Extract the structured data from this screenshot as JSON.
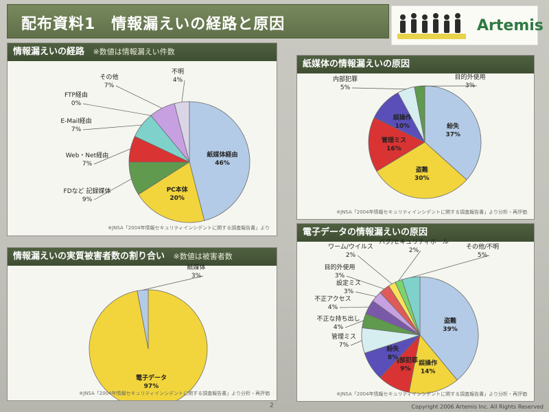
{
  "title": "配布資料1　情報漏えいの経路と原因",
  "logo": {
    "text": "Artemis"
  },
  "page_number": "2",
  "copyright": "Copyright 2006 Artemis Inc. All Rights Reserved",
  "colors": {
    "header": "#4f6040",
    "title_bar": "#6c7d55",
    "logo_green": "#2f7a43"
  },
  "chart_data": [
    {
      "type": "pie",
      "title": "情報漏えいの経路",
      "note": "※数値は情報漏えい件数",
      "source": "※JNSA「2004年情報セキュリティインシデントに関する調査報告書」より",
      "slices": [
        {
          "label": "紙媒体経由",
          "value": 46,
          "text": "46%",
          "color": "#b3cbe6"
        },
        {
          "label": "PC本体",
          "value": 20,
          "text": "20%",
          "color": "#f2d53c"
        },
        {
          "label": "FDなど 記録媒体",
          "value": 9,
          "text": "9%",
          "color": "#5f9a4e"
        },
        {
          "label": "Web・Net経由",
          "value": 7,
          "text": "7%",
          "color": "#d93333"
        },
        {
          "label": "E-Mail経由",
          "value": 7,
          "text": "7%",
          "color": "#7fd2cc"
        },
        {
          "label": "FTP経由",
          "value": 0,
          "text": "0%",
          "color": "#e8e8e8"
        },
        {
          "label": "その他",
          "value": 7,
          "text": "7%",
          "color": "#c7a0e2"
        },
        {
          "label": "不明",
          "value": 4,
          "text": "4%",
          "color": "#d9d4e6"
        }
      ]
    },
    {
      "type": "pie",
      "title": "紙媒体の情報漏えいの原因",
      "source": "※JNSA「2004年情報セキュリティインシデントに関する調査報告書」より分析・再評価",
      "slices": [
        {
          "label": "紛失",
          "value": 37,
          "text": "37%",
          "color": "#b3cbe6"
        },
        {
          "label": "盗難",
          "value": 30,
          "text": "30%",
          "color": "#f2d53c"
        },
        {
          "label": "管理ミス",
          "value": 16,
          "text": "16%",
          "color": "#d93333"
        },
        {
          "label": "誤操作",
          "value": 10,
          "text": "10%",
          "color": "#5a4fb8"
        },
        {
          "label": "内部犯罪",
          "value": 5,
          "text": "5%",
          "color": "#d6eef0"
        },
        {
          "label": "目的外使用",
          "value": 3,
          "text": "3%",
          "color": "#5f9a4e"
        }
      ]
    },
    {
      "type": "pie",
      "title": "情報漏えいの実質被害者数の割り合い",
      "note": "※数値は被害者数",
      "source": "※JNSA「2004年情報セキュリティインシデントに関する調査報告書」より分析・再評価",
      "slices": [
        {
          "label": "電子データ",
          "value": 97,
          "text": "97%",
          "color": "#f2d53c"
        },
        {
          "label": "紙媒体",
          "value": 3,
          "text": "3%",
          "color": "#b3cbe6"
        }
      ]
    },
    {
      "type": "pie",
      "title": "電子データの情報漏えいの原因",
      "source": "※JNSA「2004年情報セキュリティインシデントに関する調査報告書」より分析・再評価",
      "slices": [
        {
          "label": "盗難",
          "value": 39,
          "text": "39%",
          "color": "#b3cbe6"
        },
        {
          "label": "誤操作",
          "value": 14,
          "text": "14%",
          "color": "#f2d53c"
        },
        {
          "label": "内部犯罪",
          "value": 9,
          "text": "9%",
          "color": "#d93333"
        },
        {
          "label": "紛失",
          "value": 8,
          "text": "8%",
          "color": "#5a4fb8"
        },
        {
          "label": "管理ミス",
          "value": 7,
          "text": "7%",
          "color": "#d6eef0"
        },
        {
          "label": "不正な持ち出し",
          "value": 4,
          "text": "4%",
          "color": "#5f9a4e"
        },
        {
          "label": "不正アクセス",
          "value": 4,
          "text": "4%",
          "color": "#7a5aa8"
        },
        {
          "label": "設定ミス",
          "value": 3,
          "text": "3%",
          "color": "#c7a0e2"
        },
        {
          "label": "目的外使用",
          "value": 3,
          "text": "3%",
          "color": "#e05a5a"
        },
        {
          "label": "ワーム/ウイルス",
          "value": 2,
          "text": "2%",
          "color": "#f7e25a"
        },
        {
          "label": "バグ/セキュリティホール",
          "value": 2,
          "text": "2%",
          "color": "#7bd46a"
        },
        {
          "label": "その他/不明",
          "value": 5,
          "text": "5%",
          "color": "#7fd2cc"
        }
      ]
    }
  ]
}
